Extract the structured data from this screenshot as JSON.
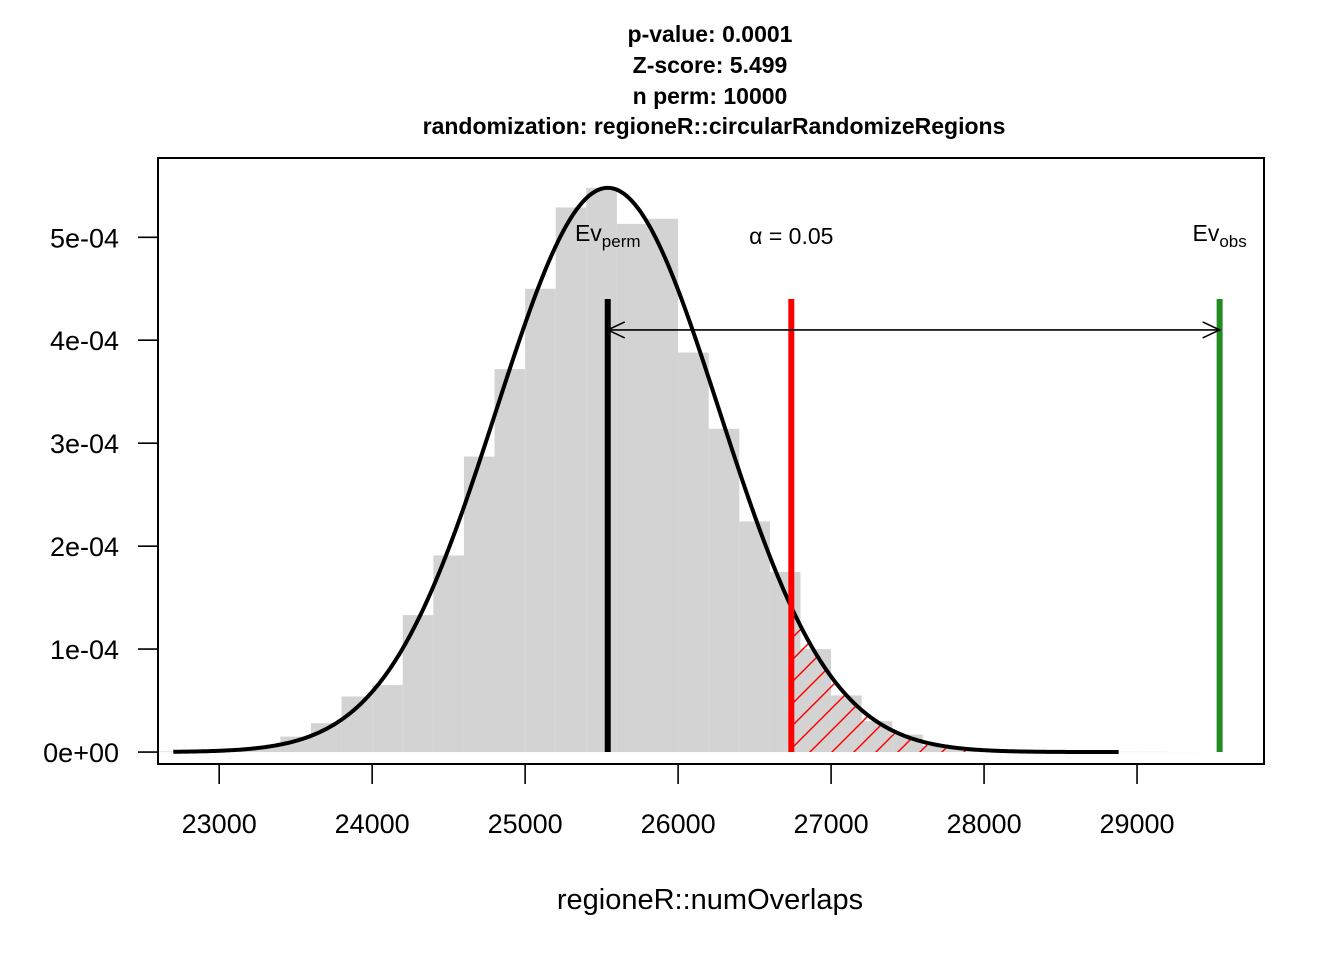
{
  "title_lines": [
    "p-value:  0.0001",
    "Z-score:  5.499",
    "n perm:  10000",
    "randomization:  regioneR::circularRandomizeRegions"
  ],
  "colors": {
    "histogram_fill": "#d3d3d3",
    "density_curve": "#000000",
    "ev_perm_line": "#000000",
    "alpha_line": "#ff0000",
    "ev_obs_line": "#228b22",
    "hatch": "#ff0000"
  },
  "chart_data": {
    "type": "histogram",
    "xlabel": "regioneR::numOverlaps",
    "ylabel": "",
    "xlim": [
      22600,
      29830
    ],
    "ylim": [
      -1.16e-05,
      0.000577
    ],
    "x_ticks": [
      23000,
      24000,
      25000,
      26000,
      27000,
      28000,
      29000
    ],
    "x_tick_labels": [
      "23000",
      "24000",
      "25000",
      "26000",
      "27000",
      "28000",
      "29000"
    ],
    "y_ticks": [
      0,
      0.0001,
      0.0002,
      0.0003,
      0.0004,
      0.0005
    ],
    "y_tick_labels": [
      "0e+00",
      "1e-04",
      "2e-04",
      "3e-04",
      "4e-04",
      "5e-04"
    ],
    "histogram": {
      "bin_width": 200,
      "bins_start": [
        22600,
        22800,
        23000,
        23200,
        23400,
        23600,
        23800,
        24000,
        24200,
        24400,
        24600,
        24800,
        25000,
        25200,
        25400,
        25600,
        25800,
        26000,
        26200,
        26400,
        26600,
        26800,
        27000,
        27200,
        27400,
        27600,
        27800,
        28000,
        28200,
        28400,
        28600,
        28800,
        29000,
        29200
      ],
      "density": [
        5e-07,
        1e-06,
        2e-06,
        5e-06,
        1.5e-05,
        2.8e-05,
        5.4e-05,
        6.5e-05,
        0.000133,
        0.000191,
        0.000287,
        0.000372,
        0.00045,
        0.000529,
        0.000548,
        0.000513,
        0.000518,
        0.000388,
        0.000314,
        0.000224,
        0.000175,
        0.0001,
        5.5e-05,
        3e-05,
        1.7e-05,
        6e-06,
        3e-06,
        1.5e-06,
        1e-06,
        5e-07,
        5e-07,
        2e-07,
        2e-07,
        1e-07
      ]
    },
    "normal_curve": {
      "mean": 25540,
      "sd": 728,
      "x_range": [
        22700,
        28880
      ]
    },
    "ev_perm": {
      "label": "Ev",
      "subscript": "perm",
      "value": 25540,
      "top": 0.00044
    },
    "alpha": {
      "label": "α = 0.05",
      "value": 26740,
      "top": 0.00044
    },
    "ev_obs": {
      "label": "Ev",
      "subscript": "obs",
      "value": 29540,
      "top": 0.00044
    },
    "arrow": {
      "from": 25540,
      "to": 29540,
      "y": 0.00041
    }
  }
}
